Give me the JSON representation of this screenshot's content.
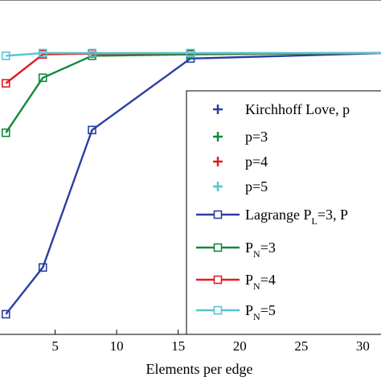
{
  "chart_data": {
    "type": "line",
    "xlabel": "Elements per edge",
    "ylabel": "",
    "x_ticks": [
      5,
      10,
      15,
      20,
      25,
      30
    ],
    "xlim": [
      0,
      32
    ],
    "ylim": [
      0,
      1
    ],
    "grid": false,
    "legend_placement": "lower-right",
    "series": [
      {
        "name": "",
        "color": "#2a3fa0",
        "marker": "square",
        "points": [
          [
            1,
            0.05
          ],
          [
            4,
            0.22
          ],
          [
            8,
            0.72
          ],
          [
            16,
            0.98
          ],
          [
            32,
            1.0
          ]
        ]
      },
      {
        "name": "",
        "color": "#118a3c",
        "marker": "square",
        "points": [
          [
            1,
            0.71
          ],
          [
            4,
            0.91
          ],
          [
            8,
            0.99
          ],
          [
            16,
            0.995
          ],
          [
            32,
            1.0
          ]
        ]
      },
      {
        "name": "",
        "color": "#e01b24",
        "marker": "square",
        "points": [
          [
            1,
            0.89
          ],
          [
            4,
            0.995
          ],
          [
            8,
            0.998
          ],
          [
            16,
            0.999
          ],
          [
            32,
            1.0
          ]
        ]
      },
      {
        "name": "",
        "color": "#57c3cf",
        "marker": "square",
        "points": [
          [
            1,
            0.99
          ],
          [
            4,
            1.0
          ],
          [
            8,
            1.0
          ],
          [
            16,
            1.0
          ],
          [
            32,
            1.0
          ]
        ]
      }
    ],
    "legend": [
      {
        "type": "plus",
        "color": "#2a3fa0",
        "main": "Kirchhoff Love, p"
      },
      {
        "type": "plus",
        "color": "#118a3c",
        "main": "p=3"
      },
      {
        "type": "plus",
        "color": "#e01b24",
        "main": "p=4"
      },
      {
        "type": "plus",
        "color": "#57c3cf",
        "main": "p=5"
      },
      {
        "type": "square",
        "color": "#2a3fa0",
        "main": "Lagrange  P",
        "sub": "L",
        "post": "=3, P"
      },
      {
        "type": "square",
        "color": "#118a3c",
        "main": "P",
        "sub": "N",
        "post": "=3"
      },
      {
        "type": "square",
        "color": "#e01b24",
        "main": "P",
        "sub": "N",
        "post": "=4"
      },
      {
        "type": "square",
        "color": "#57c3cf",
        "main": "P",
        "sub": "N",
        "post": "=5"
      }
    ]
  }
}
